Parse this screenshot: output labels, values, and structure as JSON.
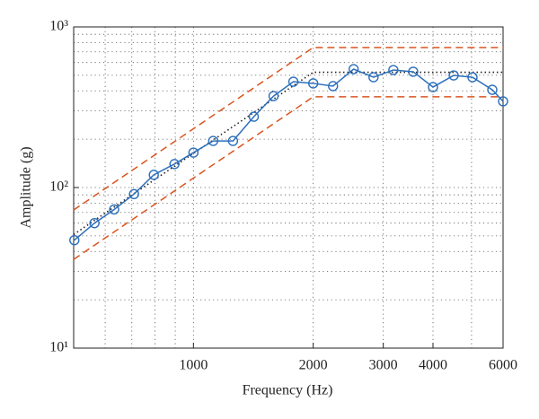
{
  "chart_data": {
    "type": "line",
    "xlabel": "Frequency (Hz)",
    "ylabel": "Amplitude (g)",
    "xscale": "log",
    "yscale": "log",
    "grid": true,
    "xlim": [
      500,
      6000
    ],
    "ylim": [
      10,
      1000
    ],
    "xticks": [
      1000,
      2000,
      3000,
      4000,
      6000
    ],
    "xminor_ticks": [
      600,
      700,
      800,
      900,
      5000
    ],
    "yticks": [
      {
        "value": 10,
        "label": "10¹"
      },
      {
        "value": 100,
        "label": "10²"
      },
      {
        "value": 1000,
        "label": "10³"
      }
    ],
    "yminor_ticks": [
      20,
      30,
      40,
      50,
      60,
      70,
      80,
      90,
      200,
      300,
      400,
      500,
      600,
      700,
      800,
      900
    ],
    "series": [
      {
        "color": "#d9541f",
        "style": "dashed",
        "x": [
          500,
          2000,
          6000
        ],
        "values": [
          72.5,
          744,
          744
        ]
      },
      {
        "color": "#d9541f",
        "style": "dashed",
        "x": [
          500,
          2000,
          6000
        ],
        "values": [
          35.7,
          367,
          367
        ]
      },
      {
        "color": "#222222",
        "style": "dotted",
        "x": [
          500,
          2000,
          6000
        ],
        "values": [
          51,
          522,
          522
        ]
      },
      {
        "color": "#2c6fbb",
        "style": "solid",
        "marker": "circle",
        "x": [
          502,
          564,
          632,
          709,
          795,
          896,
          1000,
          1121,
          1257,
          1418,
          1590,
          1783,
          2000,
          2243,
          2527,
          2835,
          3180,
          3567,
          4000,
          4508,
          5027,
          5638,
          6000
        ],
        "values": [
          47,
          60,
          73,
          91,
          120,
          140,
          165,
          195,
          195,
          276,
          371,
          456,
          445,
          428,
          546,
          486,
          539,
          526,
          422,
          499,
          486,
          406,
          344
        ]
      }
    ]
  }
}
